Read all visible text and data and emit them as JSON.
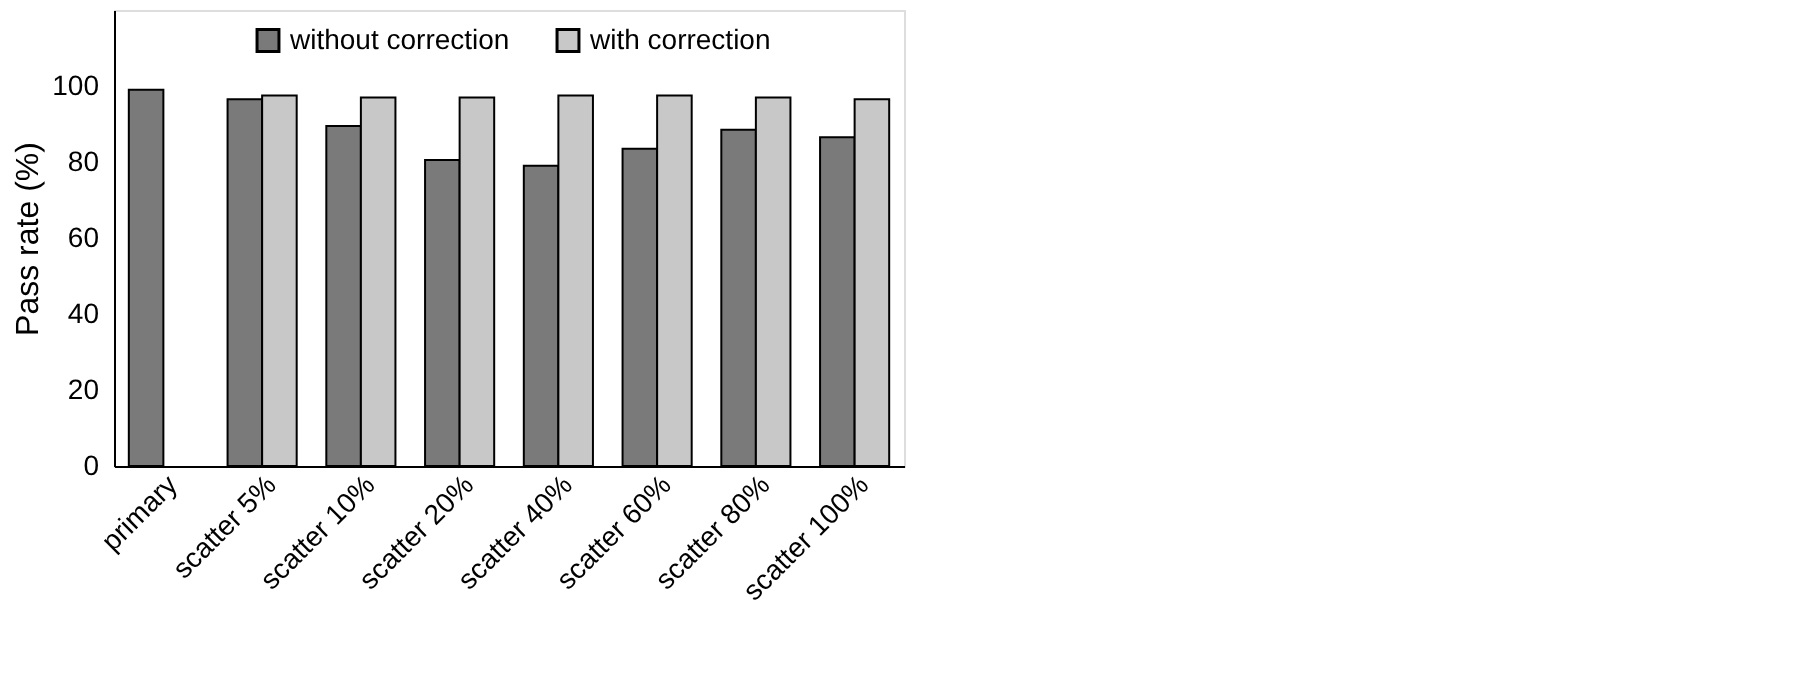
{
  "chart_data": {
    "type": "bar",
    "ylabel": "Pass rate (%)",
    "categories": [
      "primary",
      "scatter 5%",
      "scatter 10%",
      "scatter 20%",
      "scatter 40%",
      "scatter 60%",
      "scatter 80%",
      "scatter 100%"
    ],
    "series": [
      {
        "name": "without correction",
        "color": "#7a7a7a",
        "values": [
          99,
          96.5,
          89.5,
          80.5,
          79,
          83.5,
          88.5,
          86.5
        ]
      },
      {
        "name": "with correction",
        "color": "#c8c8c8",
        "values": [
          null,
          97.5,
          97,
          97,
          97.5,
          97.5,
          97,
          96.5
        ]
      }
    ],
    "ylim": [
      0,
      120
    ],
    "yticks": [
      0,
      20,
      40,
      60,
      80,
      100
    ],
    "grid": false,
    "legend": "top"
  }
}
